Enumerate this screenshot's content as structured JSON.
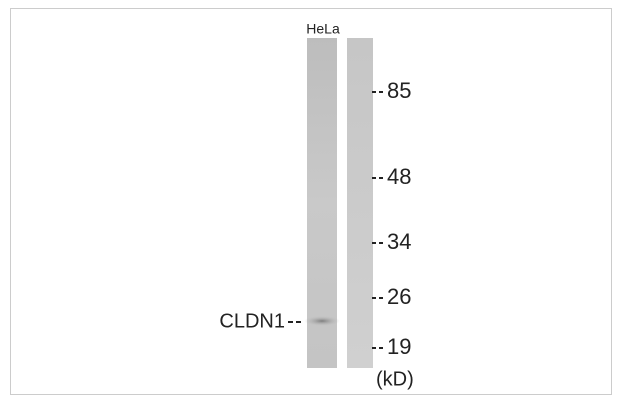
{
  "lane_label": "HeLa",
  "band_label": "CLDN1",
  "markers": [
    "85",
    "48",
    "34",
    "26",
    "19"
  ],
  "unit": "(kD)"
}
